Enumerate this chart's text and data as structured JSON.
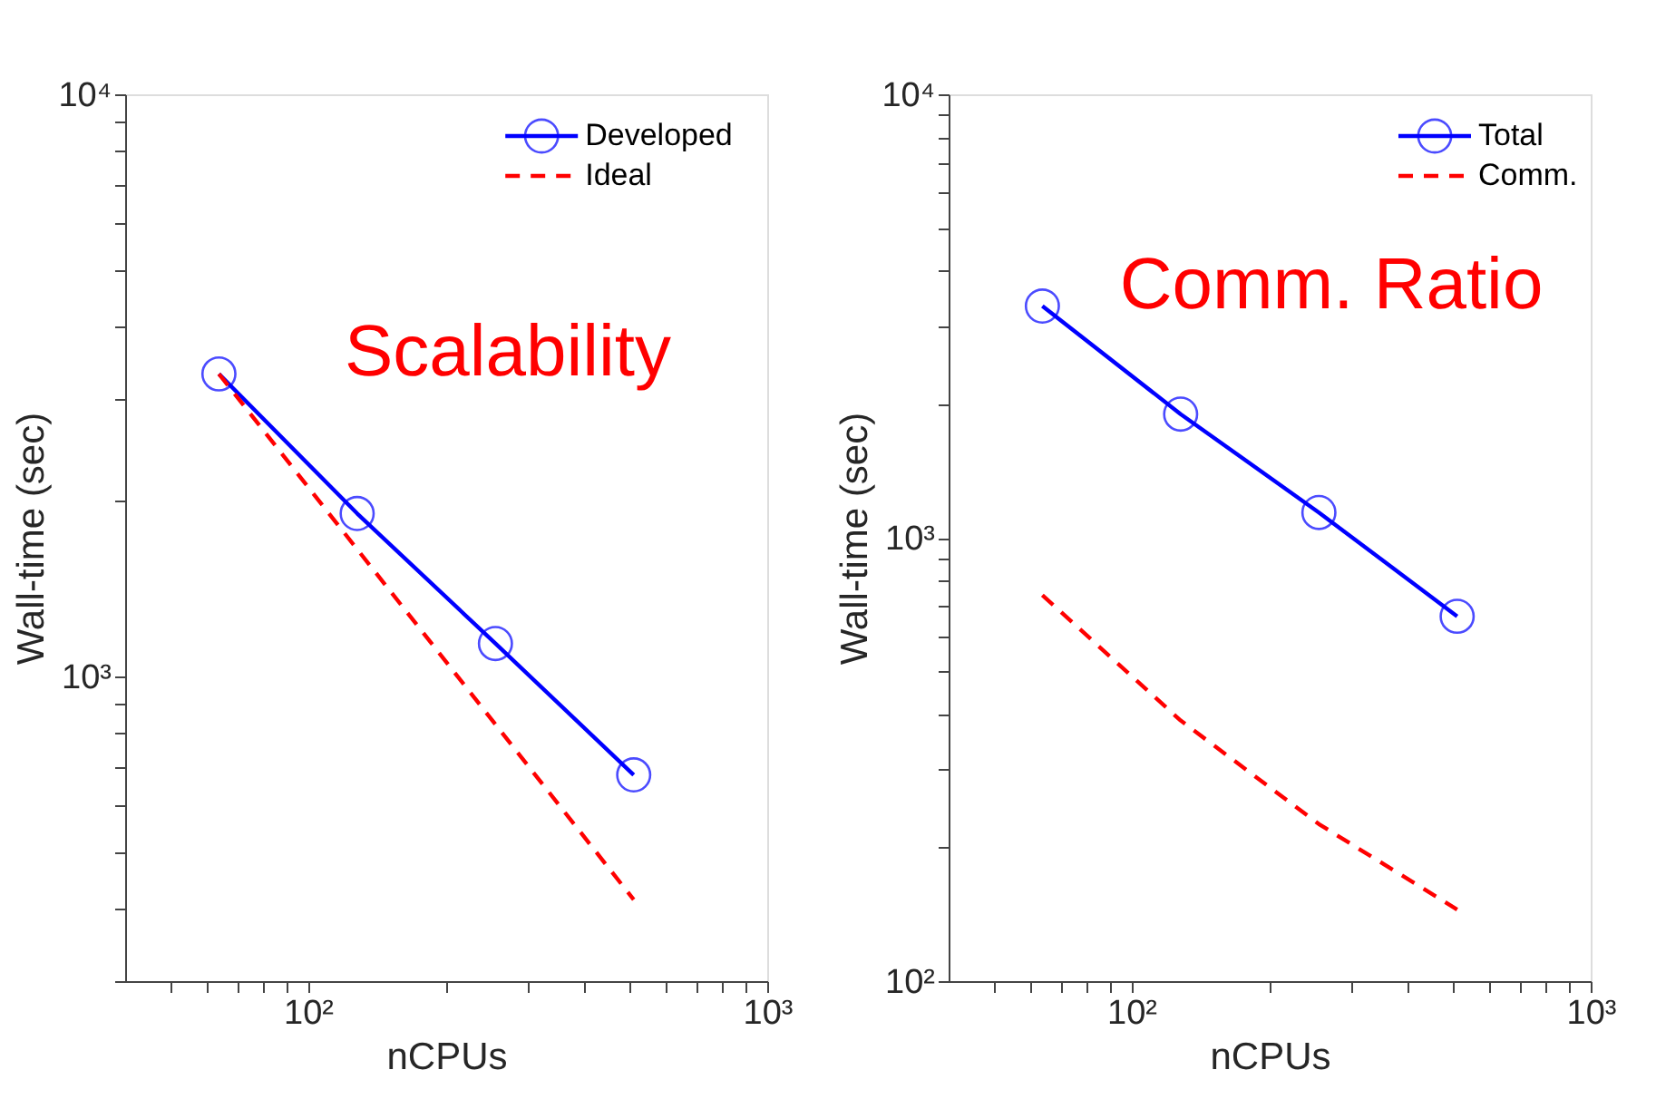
{
  "chart_data": [
    {
      "type": "line",
      "xlabel": "nCPUs",
      "ylabel": "Wall-time (sec)",
      "log": "xy",
      "grid": false,
      "legend": "top right",
      "annotations": [
        "Scalability"
      ],
      "x": [
        64,
        128,
        256,
        512
      ],
      "xlim": [
        40,
        1000
      ],
      "ylim": [
        300,
        10000
      ],
      "xticks": [
        {
          "value": 50,
          "label": null
        },
        {
          "value": 60,
          "label": null
        },
        {
          "value": 70,
          "label": null
        },
        {
          "value": 80,
          "label": null
        },
        {
          "value": 90,
          "label": null
        },
        {
          "value": 100,
          "label": "10²"
        },
        {
          "value": 200,
          "label": null
        },
        {
          "value": 300,
          "label": null
        },
        {
          "value": 400,
          "label": null
        },
        {
          "value": 500,
          "label": null
        },
        {
          "value": 600,
          "label": null
        },
        {
          "value": 700,
          "label": null
        },
        {
          "value": 800,
          "label": null
        },
        {
          "value": 900,
          "label": null
        },
        {
          "value": 1000,
          "label": "10³"
        }
      ],
      "yticks": [
        {
          "value": 300,
          "label": null
        },
        {
          "value": 400,
          "label": null
        },
        {
          "value": 500,
          "label": null
        },
        {
          "value": 600,
          "label": null
        },
        {
          "value": 700,
          "label": null
        },
        {
          "value": 800,
          "label": null
        },
        {
          "value": 900,
          "label": null
        },
        {
          "value": 1000,
          "label": "10³"
        },
        {
          "value": 2000,
          "label": null
        },
        {
          "value": 3000,
          "label": null
        },
        {
          "value": 4000,
          "label": null
        },
        {
          "value": 5000,
          "label": null
        },
        {
          "value": 6000,
          "label": null
        },
        {
          "value": 7000,
          "label": null
        },
        {
          "value": 8000,
          "label": null
        },
        {
          "value": 9000,
          "label": null
        },
        {
          "value": 10000,
          "label": "10⁴"
        }
      ],
      "series": [
        {
          "name": "Developed",
          "color": "#0000ff",
          "marker": "circle",
          "line_style": "solid",
          "values": [
            3310,
            1906,
            1140,
            678
          ]
        },
        {
          "name": "Ideal",
          "color": "#ff0000",
          "marker": "none",
          "line_style": "dashed",
          "values": [
            3310,
            1655,
            828,
            414
          ]
        }
      ]
    },
    {
      "type": "line",
      "xlabel": "nCPUs",
      "ylabel": "Wall-time (sec)",
      "log": "xy",
      "grid": false,
      "legend": "top right",
      "annotations": [
        "Comm. Ratio"
      ],
      "x": [
        64,
        128,
        256,
        512
      ],
      "xlim": [
        40,
        1000
      ],
      "ylim": [
        100,
        10000
      ],
      "xticks": [
        {
          "value": 50,
          "label": null
        },
        {
          "value": 60,
          "label": null
        },
        {
          "value": 70,
          "label": null
        },
        {
          "value": 80,
          "label": null
        },
        {
          "value": 90,
          "label": null
        },
        {
          "value": 100,
          "label": "10²"
        },
        {
          "value": 200,
          "label": null
        },
        {
          "value": 300,
          "label": null
        },
        {
          "value": 400,
          "label": null
        },
        {
          "value": 500,
          "label": null
        },
        {
          "value": 600,
          "label": null
        },
        {
          "value": 700,
          "label": null
        },
        {
          "value": 800,
          "label": null
        },
        {
          "value": 900,
          "label": null
        },
        {
          "value": 1000,
          "label": "10³"
        }
      ],
      "yticks": [
        {
          "value": 100,
          "label": "10²"
        },
        {
          "value": 200,
          "label": null
        },
        {
          "value": 300,
          "label": null
        },
        {
          "value": 400,
          "label": null
        },
        {
          "value": 500,
          "label": null
        },
        {
          "value": 600,
          "label": null
        },
        {
          "value": 700,
          "label": null
        },
        {
          "value": 800,
          "label": null
        },
        {
          "value": 900,
          "label": null
        },
        {
          "value": 1000,
          "label": "10³"
        },
        {
          "value": 2000,
          "label": null
        },
        {
          "value": 3000,
          "label": null
        },
        {
          "value": 4000,
          "label": null
        },
        {
          "value": 5000,
          "label": null
        },
        {
          "value": 6000,
          "label": null
        },
        {
          "value": 7000,
          "label": null
        },
        {
          "value": 8000,
          "label": null
        },
        {
          "value": 9000,
          "label": null
        },
        {
          "value": 10000,
          "label": "10⁴"
        }
      ],
      "series": [
        {
          "name": "Total",
          "color": "#0000ff",
          "marker": "circle",
          "line_style": "solid",
          "values": [
            3330,
            1900,
            1140,
            665
          ]
        },
        {
          "name": "Comm.",
          "color": "#ff0000",
          "marker": "none",
          "line_style": "dashed",
          "values": [
            742,
            387,
            226,
            145
          ]
        }
      ]
    }
  ]
}
